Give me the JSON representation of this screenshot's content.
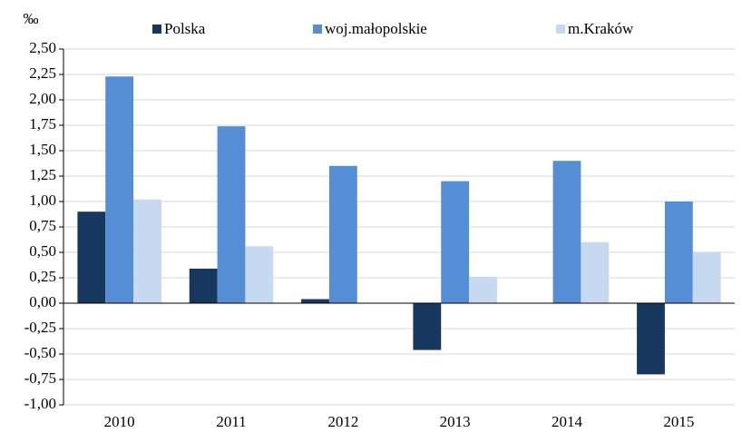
{
  "chart_data": {
    "type": "bar",
    "y_label": "‰",
    "categories": [
      "2010",
      "2011",
      "2012",
      "2013",
      "2014",
      "2015"
    ],
    "series": [
      {
        "name": "Polska",
        "color": "#17375e",
        "values": [
          0.9,
          0.34,
          0.04,
          -0.46,
          0,
          -0.7
        ]
      },
      {
        "name": "woj.małopolskie",
        "color": "#558ed5",
        "values": [
          2.23,
          1.74,
          1.35,
          1.2,
          1.4,
          1.0
        ]
      },
      {
        "name": "m.Kraków",
        "color": "#c6d9f1",
        "values": [
          1.02,
          0.56,
          0,
          0.26,
          0.6,
          0.5
        ]
      }
    ],
    "ylim": [
      -1,
      2.5
    ],
    "yticks": [
      {
        "value": -1,
        "label": "-1,00"
      },
      {
        "value": -0.75,
        "label": "-0,75"
      },
      {
        "value": -0.5,
        "label": "-0,50"
      },
      {
        "value": -0.25,
        "label": "-0,25"
      },
      {
        "value": 0,
        "label": "0,00"
      },
      {
        "value": 0.25,
        "label": "0,25"
      },
      {
        "value": 0.5,
        "label": "0,50"
      },
      {
        "value": 0.75,
        "label": "0,75"
      },
      {
        "value": 1,
        "label": "1,00"
      },
      {
        "value": 1.25,
        "label": "1,25"
      },
      {
        "value": 1.5,
        "label": "1,50"
      },
      {
        "value": 1.75,
        "label": "1,75"
      },
      {
        "value": 2,
        "label": "2,00"
      },
      {
        "value": 2.25,
        "label": "2,25"
      },
      {
        "value": 2.5,
        "label": "2,50"
      }
    ],
    "grid": true,
    "legend": "top"
  }
}
